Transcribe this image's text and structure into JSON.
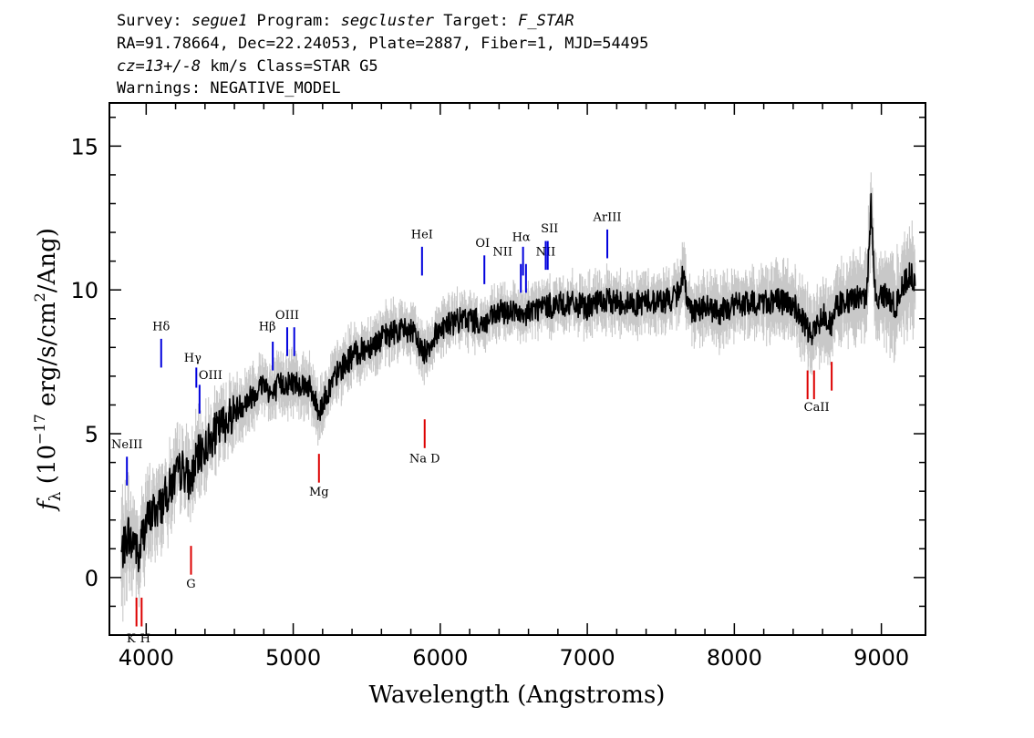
{
  "header": {
    "line1": {
      "survey_key": "Survey: ",
      "survey": "segue1",
      "program_key": " Program: ",
      "program": "segcluster",
      "target_key": " Target: ",
      "target": "F_STAR"
    },
    "line2": "RA=91.78664, Dec=22.24053, Plate=2887, Fiber=1, MJD=54495",
    "line3": {
      "cz": "cz=13+/-8",
      "rest": " km/s Class=STAR G5"
    },
    "line4": "Warnings: NEGATIVE_MODEL"
  },
  "colors": {
    "flux": "#000000",
    "error": "#c8c8c8",
    "emission": "#0000dd",
    "absorption": "#dd0000",
    "frame": "#000000"
  },
  "chart_data": {
    "type": "line",
    "title": "",
    "xlabel": "Wavelength (Angstroms)",
    "ylabel": "f_λ (10^-17 erg/s/cm^2/Ang)",
    "ylabel_parts": {
      "f": "f",
      "sub": "λ",
      "a": " (10",
      "exp1": "−17",
      "b": " erg/s/cm",
      "exp2": "2",
      "c": "/Ang)"
    },
    "xlim": [
      3750,
      9300
    ],
    "ylim": [
      -2,
      16.5
    ],
    "x_ticks": [
      4000,
      5000,
      6000,
      7000,
      8000,
      9000
    ],
    "x_tick_labels": [
      "4000",
      "5000",
      "6000",
      "7000",
      "8000",
      "9000"
    ],
    "y_ticks": [
      0,
      5,
      10,
      15
    ],
    "y_tick_labels": [
      "0",
      "5",
      "10",
      "15"
    ],
    "grid": false,
    "series": [
      {
        "role": "flux",
        "x": [
          3830,
          3860,
          3880,
          3900,
          3920,
          3950,
          3970,
          4000,
          4050,
          4100,
          4150,
          4200,
          4250,
          4300,
          4350,
          4400,
          4450,
          4500,
          4600,
          4700,
          4800,
          4861,
          4900,
          5000,
          5100,
          5175,
          5250,
          5300,
          5400,
          5500,
          5600,
          5700,
          5800,
          5890,
          6000,
          6100,
          6200,
          6300,
          6400,
          6500,
          6563,
          6600,
          6700,
          6800,
          6900,
          7000,
          7100,
          7200,
          7300,
          7400,
          7500,
          7600,
          7650,
          7700,
          7800,
          7900,
          8000,
          8100,
          8200,
          8300,
          8400,
          8500,
          8545,
          8600,
          8662,
          8700,
          8800,
          8850,
          8900,
          8930,
          8960,
          9000,
          9100,
          9150,
          9200,
          9230
        ],
        "y": [
          0.8,
          1.2,
          1.6,
          1.1,
          1.4,
          0.5,
          1.4,
          1.9,
          2.3,
          2.5,
          3.0,
          3.5,
          3.8,
          3.3,
          4.2,
          4.5,
          4.9,
          5.2,
          5.8,
          6.2,
          6.8,
          6.3,
          6.7,
          6.8,
          6.7,
          5.8,
          6.6,
          7.1,
          7.7,
          8.0,
          8.3,
          8.6,
          8.6,
          7.8,
          8.7,
          8.9,
          9.0,
          8.8,
          9.2,
          9.3,
          8.9,
          9.3,
          9.4,
          9.5,
          9.5,
          9.4,
          9.6,
          9.6,
          9.5,
          9.6,
          9.6,
          9.7,
          10.5,
          9.3,
          9.4,
          9.2,
          9.5,
          9.5,
          9.6,
          9.6,
          9.5,
          8.6,
          8.5,
          9.2,
          8.8,
          9.5,
          9.6,
          9.8,
          9.7,
          13.0,
          9.6,
          9.9,
          9.4,
          10.2,
          10.6,
          10.0
        ],
        "noise": 0.45
      },
      {
        "role": "error_envelope",
        "x": [
          3830,
          4000,
          4500,
          5000,
          5500,
          6000,
          6500,
          7000,
          7500,
          8000,
          8500,
          9000,
          9230
        ],
        "y": [
          1.2,
          0.9,
          0.7,
          0.6,
          0.55,
          0.5,
          0.5,
          0.55,
          0.6,
          0.7,
          0.8,
          1.0,
          1.2
        ]
      }
    ],
    "annotations": [
      {
        "label": "NeIII",
        "x": 3869,
        "y0": 3.2,
        "y1": 4.2,
        "kind": "emission",
        "label_y": 4.5,
        "dx": 0
      },
      {
        "label": "Hδ",
        "x": 4102,
        "y0": 7.3,
        "y1": 8.3,
        "kind": "emission",
        "label_y": 8.6,
        "dx": 0
      },
      {
        "label": "Hγ",
        "x": 4341,
        "y0": 6.6,
        "y1": 7.3,
        "kind": "emission",
        "label_y": 7.5,
        "dx": -4
      },
      {
        "label": "OIII",
        "x": 4363,
        "y0": 5.7,
        "y1": 6.7,
        "kind": "emission",
        "label_y": 6.9,
        "dx": 12
      },
      {
        "label": "Hβ",
        "x": 4861,
        "y0": 7.2,
        "y1": 8.2,
        "kind": "emission",
        "label_y": 8.6,
        "dx": -6
      },
      {
        "label": "OIII",
        "x": 4959,
        "y0": 7.7,
        "y1": 8.7,
        "kind": "emission",
        "label_y": 9.0,
        "dx": 0
      },
      {
        "label": "",
        "x": 5007,
        "y0": 7.7,
        "y1": 8.7,
        "kind": "emission",
        "label_y": 0,
        "dx": 0
      },
      {
        "label": "HeI",
        "x": 5876,
        "y0": 10.5,
        "y1": 11.5,
        "kind": "emission",
        "label_y": 11.8,
        "dx": 0
      },
      {
        "label": "OI",
        "x": 6300,
        "y0": 10.2,
        "y1": 11.2,
        "kind": "emission",
        "label_y": 11.5,
        "dx": -2
      },
      {
        "label": "NII",
        "x": 6548,
        "y0": 9.9,
        "y1": 10.9,
        "kind": "emission",
        "label_y": 11.2,
        "dx": -20
      },
      {
        "label": "Hα",
        "x": 6563,
        "y0": 10.5,
        "y1": 11.5,
        "kind": "emission",
        "label_y": 11.7,
        "dx": -2
      },
      {
        "label": "",
        "x": 6583,
        "y0": 9.9,
        "y1": 10.9,
        "kind": "emission",
        "label_y": 0,
        "dx": 0
      },
      {
        "label": "NII",
        "x": 6717,
        "y0": 10.7,
        "y1": 11.7,
        "kind": "emission",
        "label_y": 11.2,
        "dx": 0
      },
      {
        "label": "SII",
        "x": 6731,
        "y0": 10.7,
        "y1": 11.7,
        "kind": "emission",
        "label_y": 12.0,
        "dx": 2
      },
      {
        "label": "ArIII",
        "x": 7136,
        "y0": 11.1,
        "y1": 12.1,
        "kind": "emission",
        "label_y": 12.4,
        "dx": 0
      },
      {
        "label": "K",
        "x": 3934,
        "y0": -1.7,
        "y1": -0.7,
        "kind": "absorption",
        "label_y": -2.25,
        "dx": -6
      },
      {
        "label": "H",
        "x": 3969,
        "y0": -1.7,
        "y1": -0.7,
        "kind": "absorption",
        "label_y": -2.25,
        "dx": 4
      },
      {
        "label": "G",
        "x": 4305,
        "y0": 0.1,
        "y1": 1.1,
        "kind": "absorption",
        "label_y": -0.35,
        "dx": 0
      },
      {
        "label": "Mg",
        "x": 5175,
        "y0": 3.3,
        "y1": 4.3,
        "kind": "absorption",
        "label_y": 2.85,
        "dx": 0
      },
      {
        "label": "Na D",
        "x": 5894,
        "y0": 4.5,
        "y1": 5.5,
        "kind": "absorption",
        "label_y": 4.0,
        "dx": 0
      },
      {
        "label": "CaII",
        "x": 8498,
        "y0": 6.2,
        "y1": 7.2,
        "kind": "absorption",
        "label_y": 5.8,
        "dx": 10
      },
      {
        "label": "",
        "x": 8542,
        "y0": 6.2,
        "y1": 7.2,
        "kind": "absorption",
        "label_y": 0,
        "dx": 0
      },
      {
        "label": "",
        "x": 8662,
        "y0": 6.5,
        "y1": 7.5,
        "kind": "absorption",
        "label_y": 0,
        "dx": 0
      }
    ]
  }
}
